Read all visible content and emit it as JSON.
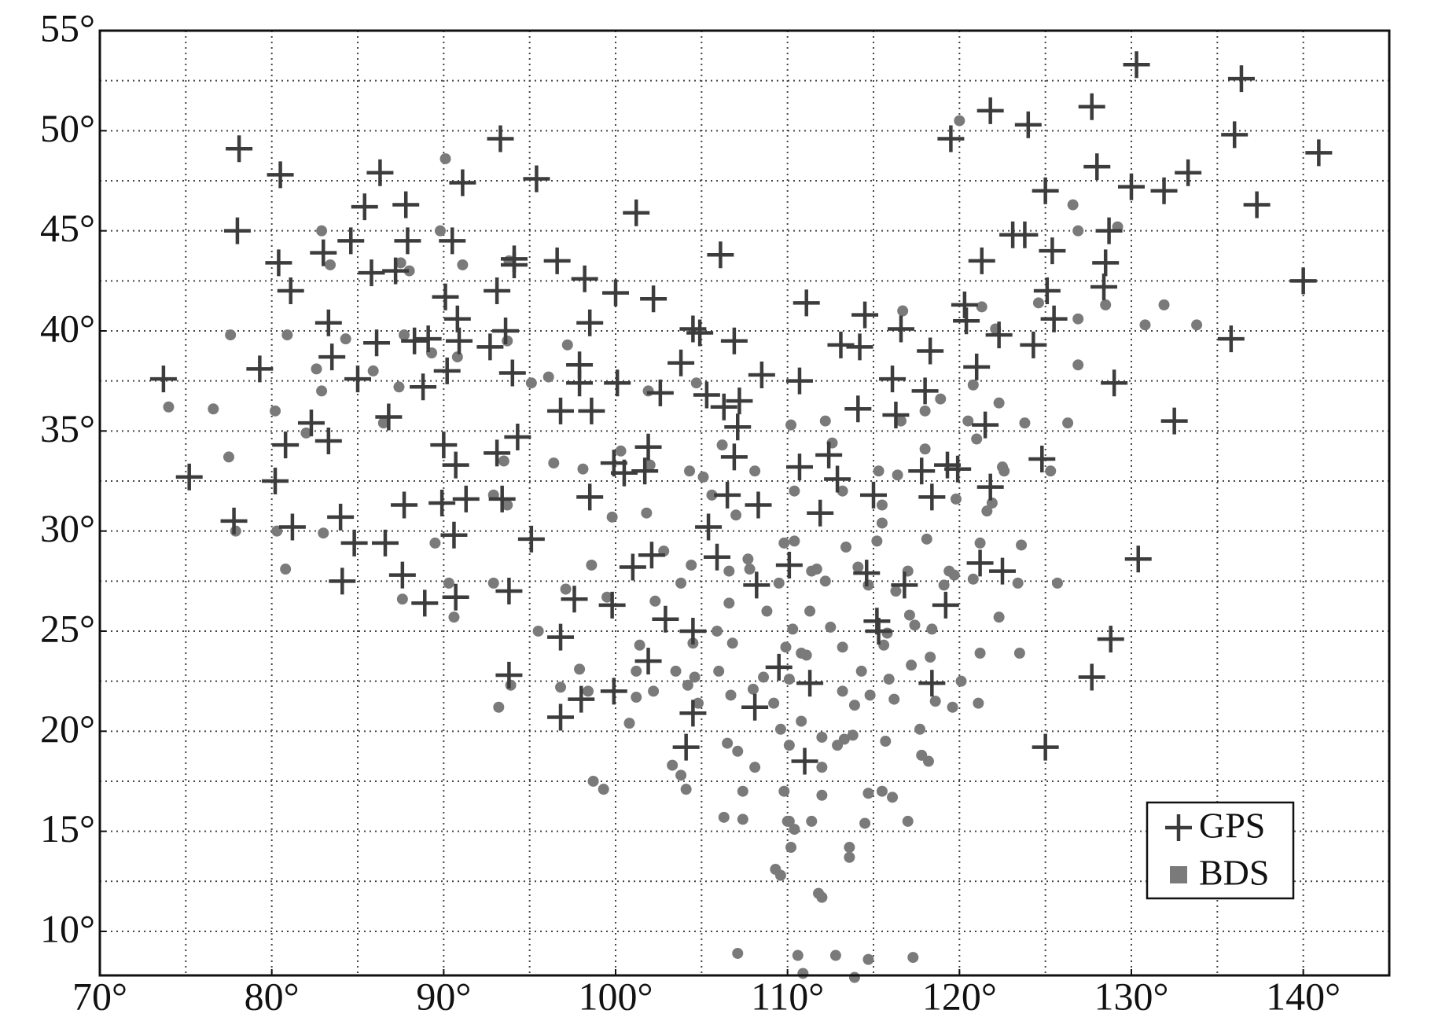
{
  "chart_data": {
    "type": "scatter",
    "xlim": [
      70,
      145
    ],
    "ylim": [
      7.8,
      55
    ],
    "xticks": [
      {
        "value": 70,
        "label": "70°"
      },
      {
        "value": 80,
        "label": "80°"
      },
      {
        "value": 90,
        "label": "90°"
      },
      {
        "value": 100,
        "label": "100°"
      },
      {
        "value": 110,
        "label": "110°"
      },
      {
        "value": 120,
        "label": "120°"
      },
      {
        "value": 130,
        "label": "130°"
      },
      {
        "value": 140,
        "label": "140°"
      }
    ],
    "yticks": [
      {
        "value": 10,
        "label": "10°"
      },
      {
        "value": 15,
        "label": "15°"
      },
      {
        "value": 20,
        "label": "20°"
      },
      {
        "value": 25,
        "label": "25°"
      },
      {
        "value": 30,
        "label": "30°"
      },
      {
        "value": 35,
        "label": "35°"
      },
      {
        "value": 40,
        "label": "40°"
      },
      {
        "value": 45,
        "label": "45°"
      },
      {
        "value": 50,
        "label": "50°"
      },
      {
        "value": 55,
        "label": "55°"
      }
    ],
    "xgrid": [
      75,
      80,
      85,
      90,
      95,
      100,
      105,
      110,
      115,
      120,
      125,
      130,
      135,
      140
    ],
    "ygrid": [
      10,
      12.5,
      15,
      17.5,
      20,
      22.5,
      25,
      27.5,
      30,
      32.5,
      35,
      37.5,
      40,
      42.5,
      45,
      47.5,
      50,
      52.5
    ],
    "grid": true,
    "legend": "lower right",
    "series": [
      {
        "name": "GPS",
        "color": "#3c3c3c",
        "marker": "cross",
        "x": [
          73.7,
          75.2,
          77.8,
          78.1,
          78,
          79.3,
          80.2,
          80.5,
          80.4,
          80.8,
          81.1,
          81.2,
          82.3,
          83,
          83.3,
          83.3,
          83.5,
          84,
          84.1,
          84.6,
          84.8,
          85,
          85.4,
          85.8,
          86.1,
          86.3,
          86.6,
          86.8,
          87.2,
          87.6,
          87.7,
          87.8,
          87.9,
          88.3,
          88.9,
          88.8,
          89.1,
          89.9,
          90,
          90.1,
          90.2,
          90.5,
          90.6,
          90.7,
          90.7,
          90.8,
          90.9,
          91.1,
          91.3,
          92.7,
          93.1,
          93.1,
          93.3,
          93.4,
          93.6,
          93.8,
          93.8,
          94,
          94.1,
          94.1,
          94.3,
          95.1,
          95.4,
          96.6,
          96.8,
          96.8,
          96.8,
          97.6,
          97.9,
          97.9,
          98,
          98.2,
          98.5,
          98.5,
          98.6,
          99.8,
          99.9,
          99.9,
          100,
          100.1,
          100.5,
          101,
          101.2,
          101.7,
          101.9,
          102.1,
          101.9,
          102.2,
          102.6,
          102.9,
          103.8,
          104.1,
          104.5,
          104.5,
          104.5,
          104.9,
          105.3,
          105.4,
          105.9,
          106.1,
          106.3,
          106.5,
          106.9,
          106.9,
          107.1,
          107.2,
          108.3,
          108.2,
          108.5,
          108.1,
          109.5,
          110.1,
          110.7,
          110.7,
          111.1,
          111,
          111.3,
          111.9,
          112.4,
          112.9,
          113.1,
          114.1,
          114.2,
          114.5,
          114.6,
          115,
          115.2,
          115.3,
          116.1,
          116.3,
          116.6,
          116.8,
          117.8,
          118,
          118.3,
          118.4,
          118.4,
          119.2,
          119.3,
          119.5,
          119.9,
          120.3,
          120.4,
          121,
          121.2,
          121.3,
          121.5,
          121.8,
          121.8,
          122.3,
          122.5,
          123.1,
          123.8,
          124,
          124.3,
          124.8,
          125,
          125.1,
          125,
          125.4,
          125.5,
          127.7,
          127.7,
          128,
          128.4,
          128.5,
          128.7,
          128.8,
          129,
          130,
          130.3,
          130.4,
          131.9,
          132.5,
          133.3,
          135.8,
          136,
          136.4,
          137.3,
          140,
          140.9
        ],
        "values": [
          37.6,
          32.7,
          30.5,
          49.1,
          45,
          38.1,
          32.5,
          47.8,
          43.4,
          34.3,
          42,
          30.2,
          35.4,
          43.9,
          34.5,
          40.4,
          38.7,
          30.7,
          27.5,
          44.5,
          29.4,
          37.6,
          46.2,
          42.9,
          39.4,
          47.9,
          29.4,
          35.7,
          43,
          27.8,
          31.3,
          46.3,
          44.5,
          39.5,
          26.4,
          37.2,
          39.6,
          31.4,
          34.3,
          41.7,
          38,
          44.5,
          29.8,
          33.3,
          26.7,
          40.6,
          39.5,
          47.4,
          31.6,
          39.2,
          33.9,
          42,
          49.6,
          31.6,
          40,
          22.8,
          27,
          37.9,
          43.3,
          43.6,
          34.7,
          29.6,
          47.6,
          43.5,
          24.7,
          36,
          20.7,
          26.6,
          38.3,
          37.4,
          21.6,
          42.6,
          31.7,
          40.4,
          36,
          26.3,
          33.4,
          22,
          41.9,
          37.4,
          32.9,
          28.2,
          45.9,
          33,
          34.2,
          28.8,
          23.5,
          41.6,
          36.9,
          25.6,
          38.4,
          19.2,
          40.1,
          25,
          20.9,
          39.9,
          36.8,
          30.2,
          28.7,
          43.8,
          36.2,
          31.8,
          39.5,
          33.7,
          35.2,
          36.5,
          31.3,
          27.3,
          37.8,
          21.2,
          23.2,
          28.3,
          33.2,
          37.5,
          41.4,
          18.5,
          22.4,
          30.9,
          33.8,
          32.6,
          39.3,
          36.1,
          39.2,
          40.8,
          27.9,
          31.8,
          25.5,
          25,
          37.6,
          35.8,
          40.1,
          27.3,
          33,
          37,
          39,
          31.7,
          22.4,
          26.3,
          33.3,
          49.6,
          33.1,
          41.3,
          40.5,
          38.2,
          28.4,
          43.5,
          35.3,
          32.2,
          51,
          39.8,
          28,
          44.8,
          44.8,
          50.3,
          39.3,
          33.6,
          47,
          42,
          19.2,
          44,
          40.6,
          51.2,
          22.7,
          48.2,
          42.2,
          43.4,
          45,
          24.6,
          37.4,
          47.2,
          53.3,
          28.6,
          47,
          35.5,
          47.9,
          39.6,
          49.8,
          52.6,
          46.3,
          42.5,
          48.9
        ]
      },
      {
        "name": "BDS",
        "color": "#7a7a7a",
        "marker": "dot",
        "x": [
          74,
          77.5,
          77.6,
          77.9,
          76.6,
          80.2,
          80.3,
          80.8,
          80.9,
          82,
          82.6,
          82.9,
          82.9,
          83,
          83.4,
          84.3,
          85.9,
          86.5,
          87.5,
          87.4,
          87.6,
          87.7,
          88,
          89.3,
          89.5,
          89.8,
          90.1,
          90.6,
          91.1,
          90.8,
          90.3,
          92.9,
          92.9,
          93.2,
          93.5,
          93.7,
          93.9,
          93.8,
          93.7,
          95.1,
          95.5,
          96.1,
          96.4,
          96.8,
          97.1,
          97.2,
          97.9,
          98.1,
          98.4,
          98.6,
          98.7,
          99.3,
          99.5,
          99.8,
          100.3,
          100.8,
          101.2,
          101.4,
          101.2,
          101.8,
          101.9,
          102,
          102.2,
          102.3,
          102.8,
          103.3,
          103.5,
          103.8,
          103.8,
          104.1,
          104.2,
          104.3,
          104.4,
          104.5,
          104.6,
          104.7,
          104.8,
          105.1,
          105.6,
          105.9,
          106,
          106.2,
          106.3,
          106.6,
          106.5,
          106.7,
          106.8,
          106.6,
          107,
          107.1,
          107.1,
          107.4,
          107.4,
          107.7,
          107.8,
          108,
          108.1,
          108.1,
          108.6,
          108.8,
          109.2,
          109.3,
          109.6,
          109.6,
          109.5,
          109.8,
          109.9,
          109.8,
          110,
          110.2,
          110.1,
          110.4,
          110.3,
          110.1,
          110.1,
          110.4,
          110.4,
          110.2,
          110.8,
          110.8,
          110.6,
          110.9,
          111.1,
          111.3,
          111.4,
          111.4,
          111.7,
          111.8,
          112,
          112,
          112,
          112,
          112.2,
          112.2,
          112.5,
          112.6,
          112.8,
          112.9,
          113.2,
          113.3,
          113.2,
          113.2,
          113.4,
          113.6,
          113.6,
          113.8,
          113.9,
          113.9,
          114.1,
          114.3,
          114.5,
          114.7,
          114.7,
          114.7,
          114.8,
          115.2,
          115.3,
          115.5,
          115.5,
          115.6,
          115.7,
          115.9,
          115.5,
          115.8,
          116.1,
          116.3,
          116.2,
          116.4,
          116.6,
          116.7,
          117,
          117.1,
          117,
          117.2,
          117.3,
          117.4,
          117.7,
          117.8,
          118,
          118,
          118.1,
          118.2,
          118.3,
          118.4,
          118.6,
          118.9,
          119.1,
          119.4,
          119.6,
          119.7,
          119.8,
          120,
          120.1,
          120.5,
          120.8,
          120.8,
          121,
          121.2,
          121.2,
          121.1,
          121.3,
          121.6,
          121.9,
          122.1,
          122.3,
          122.3,
          122.5,
          122.6,
          123.4,
          123.5,
          123.6,
          123.8,
          124.6,
          125.3,
          125.7,
          126.3,
          126.6,
          126.9,
          126.9,
          126.9,
          128.5,
          129.2,
          130.8,
          131.9,
          133.8
        ],
        "values": [
          36.2,
          33.7,
          39.8,
          30,
          36.1,
          36,
          30,
          28.1,
          39.8,
          34.9,
          38.1,
          37,
          45,
          29.9,
          43.3,
          39.6,
          38,
          35.4,
          43.4,
          37.2,
          26.6,
          39.8,
          43,
          38.9,
          29.4,
          45,
          48.6,
          25.7,
          43.3,
          38.7,
          27.4,
          27.4,
          31.8,
          21.2,
          33.5,
          31.3,
          22.3,
          43.5,
          39.5,
          37.4,
          25,
          37.7,
          33.4,
          22.2,
          27.1,
          39.3,
          23.1,
          33.1,
          22,
          28.3,
          17.5,
          17.1,
          26.7,
          30.7,
          34,
          20.4,
          23,
          24.3,
          21.7,
          30.9,
          37,
          33.3,
          22,
          26.5,
          29,
          18.3,
          23,
          17.8,
          27.4,
          17.1,
          22.3,
          33,
          28.3,
          24.4,
          22.7,
          37.4,
          21.4,
          32.7,
          31.8,
          25,
          23,
          34.3,
          15.7,
          26.4,
          19.4,
          21.8,
          24.4,
          28,
          30.8,
          19,
          8.9,
          15.6,
          17,
          28.6,
          28.1,
          22.1,
          33,
          18.2,
          22.7,
          26,
          21.4,
          13.1,
          12.8,
          20.1,
          27.4,
          29.4,
          24.2,
          17,
          15.5,
          14.2,
          15.5,
          15.1,
          25.1,
          19.3,
          22.6,
          29.5,
          32,
          35.3,
          20.5,
          23.9,
          8.8,
          7.9,
          23.8,
          26,
          28,
          15.5,
          28.1,
          11.9,
          11.7,
          16.8,
          19.7,
          18.2,
          27.5,
          35.5,
          25.2,
          34.4,
          8.8,
          19.3,
          24.2,
          19.6,
          22,
          32,
          29.2,
          14.2,
          13.7,
          19.8,
          21.3,
          7.7,
          28.2,
          23,
          15.4,
          8.6,
          27.3,
          16.9,
          21.8,
          29.5,
          33,
          31.3,
          30.4,
          24.3,
          19.5,
          22.6,
          17,
          24.9,
          16.7,
          27,
          21.6,
          32.8,
          35.5,
          41,
          15.5,
          25.8,
          28,
          23.3,
          8.7,
          25.3,
          20.1,
          18.8,
          34.1,
          36,
          29.6,
          18.5,
          23.7,
          25.1,
          21.5,
          36.6,
          27.3,
          28,
          21.2,
          27.8,
          31.6,
          50.5,
          22.5,
          35.5,
          37.3,
          27.6,
          34.6,
          29.4,
          23.9,
          21.4,
          41.2,
          31,
          31.4,
          40.1,
          25.7,
          36.4,
          33.2,
          33,
          27.4,
          23.9,
          29.3,
          35.4,
          41.4,
          33,
          27.4,
          35.4,
          46.3,
          38.3,
          40.6,
          45,
          41.3,
          45.2,
          40.3,
          41.3,
          40.3
        ]
      }
    ]
  }
}
